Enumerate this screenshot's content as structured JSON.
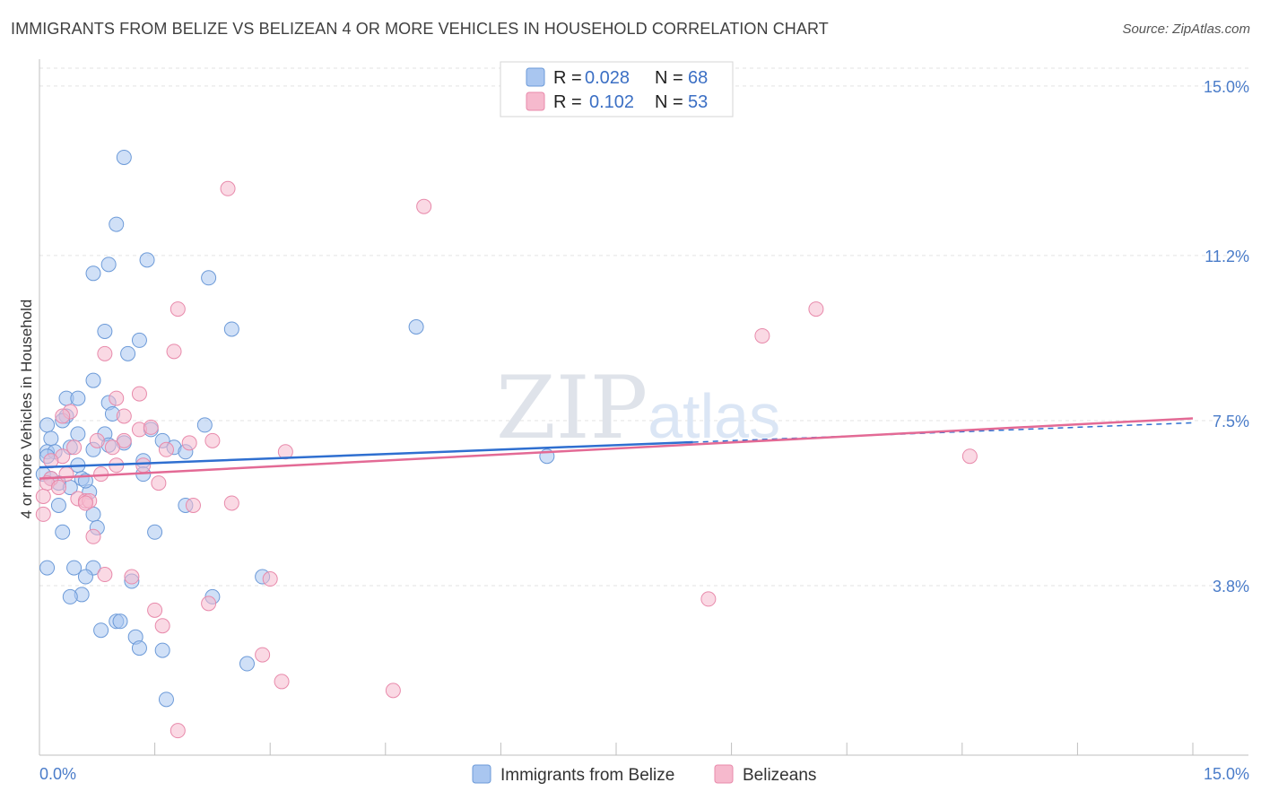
{
  "title": "IMMIGRANTS FROM BELIZE VS BELIZEAN 4 OR MORE VEHICLES IN HOUSEHOLD CORRELATION CHART",
  "source": "Source: ZipAtlas.com",
  "watermark": "ZIPatlas",
  "colors": {
    "blue": "#a9c6f0",
    "blue_stroke": "#6c9ad8",
    "pink": "#f6b9cd",
    "pink_stroke": "#e88aab",
    "blue_line": "#2f6fd0",
    "pink_line": "#e36a95"
  },
  "legend": {
    "rows": [
      {
        "r_label": "R =",
        "r_value": "0.028",
        "n_label": "N =",
        "n_value": "68"
      },
      {
        "r_label": "R =",
        "r_value": "0.102",
        "n_label": "N =",
        "n_value": "53"
      }
    ]
  },
  "chart_data": {
    "type": "scatter",
    "title": "IMMIGRANTS FROM BELIZE VS BELIZEAN 4 OR MORE VEHICLES IN HOUSEHOLD CORRELATION CHART",
    "xlabel": "",
    "ylabel": "4 or more Vehicles in Household",
    "xlim": [
      0,
      15
    ],
    "ylim": [
      0,
      15.4
    ],
    "x_tick_labels": [
      "0.0%",
      "15.0%"
    ],
    "y_ticks": [
      3.8,
      7.5,
      11.2,
      15.0
    ],
    "y_tick_labels": [
      "3.8%",
      "7.5%",
      "11.2%",
      "15.0%"
    ],
    "series": [
      {
        "name": "Immigrants from Belize",
        "color": "blue",
        "trend": {
          "x0": 0,
          "y0": 6.45,
          "x1": 15,
          "y1": 7.45,
          "solid_until": 8.5
        },
        "points": [
          [
            1.1,
            13.4
          ],
          [
            1.0,
            11.9
          ],
          [
            0.7,
            10.8
          ],
          [
            0.9,
            11.0
          ],
          [
            1.4,
            11.1
          ],
          [
            2.2,
            10.7
          ],
          [
            0.85,
            9.5
          ],
          [
            1.3,
            9.3
          ],
          [
            1.15,
            9.0
          ],
          [
            2.5,
            9.55
          ],
          [
            4.9,
            9.6
          ],
          [
            0.7,
            8.4
          ],
          [
            0.35,
            8.0
          ],
          [
            0.5,
            8.0
          ],
          [
            0.9,
            7.9
          ],
          [
            0.95,
            7.65
          ],
          [
            0.35,
            7.6
          ],
          [
            0.3,
            7.5
          ],
          [
            0.1,
            7.4
          ],
          [
            0.15,
            7.1
          ],
          [
            0.5,
            7.2
          ],
          [
            0.85,
            7.2
          ],
          [
            1.45,
            7.3
          ],
          [
            2.15,
            7.4
          ],
          [
            0.4,
            6.9
          ],
          [
            0.1,
            6.8
          ],
          [
            0.2,
            6.8
          ],
          [
            0.7,
            6.85
          ],
          [
            0.9,
            6.95
          ],
          [
            1.1,
            7.0
          ],
          [
            1.6,
            7.05
          ],
          [
            1.75,
            6.9
          ],
          [
            1.9,
            6.8
          ],
          [
            6.6,
            6.7
          ],
          [
            1.35,
            6.6
          ],
          [
            0.5,
            6.5
          ],
          [
            0.05,
            6.3
          ],
          [
            0.55,
            6.2
          ],
          [
            1.35,
            6.3
          ],
          [
            0.25,
            6.1
          ],
          [
            0.4,
            6.0
          ],
          [
            0.65,
            5.9
          ],
          [
            0.25,
            5.6
          ],
          [
            1.9,
            5.6
          ],
          [
            0.7,
            5.4
          ],
          [
            0.75,
            5.1
          ],
          [
            0.3,
            5.0
          ],
          [
            1.5,
            5.0
          ],
          [
            0.1,
            4.2
          ],
          [
            0.45,
            4.2
          ],
          [
            0.7,
            4.2
          ],
          [
            0.6,
            4.0
          ],
          [
            1.2,
            3.9
          ],
          [
            2.9,
            4.0
          ],
          [
            0.55,
            3.6
          ],
          [
            0.4,
            3.55
          ],
          [
            2.25,
            3.55
          ],
          [
            1.0,
            3.0
          ],
          [
            1.05,
            3.0
          ],
          [
            0.8,
            2.8
          ],
          [
            1.25,
            2.65
          ],
          [
            1.3,
            2.4
          ],
          [
            1.6,
            2.35
          ],
          [
            2.7,
            2.05
          ],
          [
            1.65,
            1.25
          ],
          [
            0.1,
            6.7
          ],
          [
            0.15,
            6.2
          ],
          [
            0.6,
            6.15
          ]
        ]
      },
      {
        "name": "Belizeans",
        "color": "pink",
        "trend": {
          "x0": 0,
          "y0": 6.2,
          "x1": 15,
          "y1": 7.55,
          "solid_until": 15
        },
        "points": [
          [
            2.45,
            12.7
          ],
          [
            5.0,
            12.3
          ],
          [
            1.8,
            10.0
          ],
          [
            10.1,
            10.0
          ],
          [
            9.4,
            9.4
          ],
          [
            0.85,
            9.0
          ],
          [
            1.75,
            9.05
          ],
          [
            1.3,
            8.1
          ],
          [
            1.0,
            8.0
          ],
          [
            1.1,
            7.6
          ],
          [
            0.4,
            7.7
          ],
          [
            0.3,
            7.6
          ],
          [
            1.3,
            7.3
          ],
          [
            1.45,
            7.35
          ],
          [
            1.1,
            7.05
          ],
          [
            0.75,
            7.05
          ],
          [
            2.25,
            7.05
          ],
          [
            1.95,
            7.0
          ],
          [
            0.45,
            6.9
          ],
          [
            0.95,
            6.9
          ],
          [
            1.65,
            6.85
          ],
          [
            3.2,
            6.8
          ],
          [
            12.1,
            6.7
          ],
          [
            0.3,
            6.7
          ],
          [
            0.15,
            6.6
          ],
          [
            1.0,
            6.5
          ],
          [
            1.35,
            6.5
          ],
          [
            0.35,
            6.3
          ],
          [
            0.15,
            6.2
          ],
          [
            0.8,
            6.3
          ],
          [
            0.1,
            6.1
          ],
          [
            1.55,
            6.1
          ],
          [
            0.05,
            5.8
          ],
          [
            0.5,
            5.75
          ],
          [
            0.6,
            5.7
          ],
          [
            0.65,
            5.7
          ],
          [
            2.0,
            5.6
          ],
          [
            2.5,
            5.65
          ],
          [
            0.05,
            5.4
          ],
          [
            0.7,
            4.9
          ],
          [
            0.85,
            4.05
          ],
          [
            1.2,
            4.0
          ],
          [
            3.0,
            3.95
          ],
          [
            8.7,
            3.5
          ],
          [
            2.2,
            3.4
          ],
          [
            1.5,
            3.25
          ],
          [
            1.6,
            2.9
          ],
          [
            2.9,
            2.25
          ],
          [
            3.15,
            1.65
          ],
          [
            4.6,
            1.45
          ],
          [
            1.8,
            0.55
          ],
          [
            0.25,
            6.0
          ],
          [
            0.6,
            5.65
          ]
        ]
      }
    ],
    "legend_labels": [
      "Immigrants from Belize",
      "Belizeans"
    ]
  }
}
